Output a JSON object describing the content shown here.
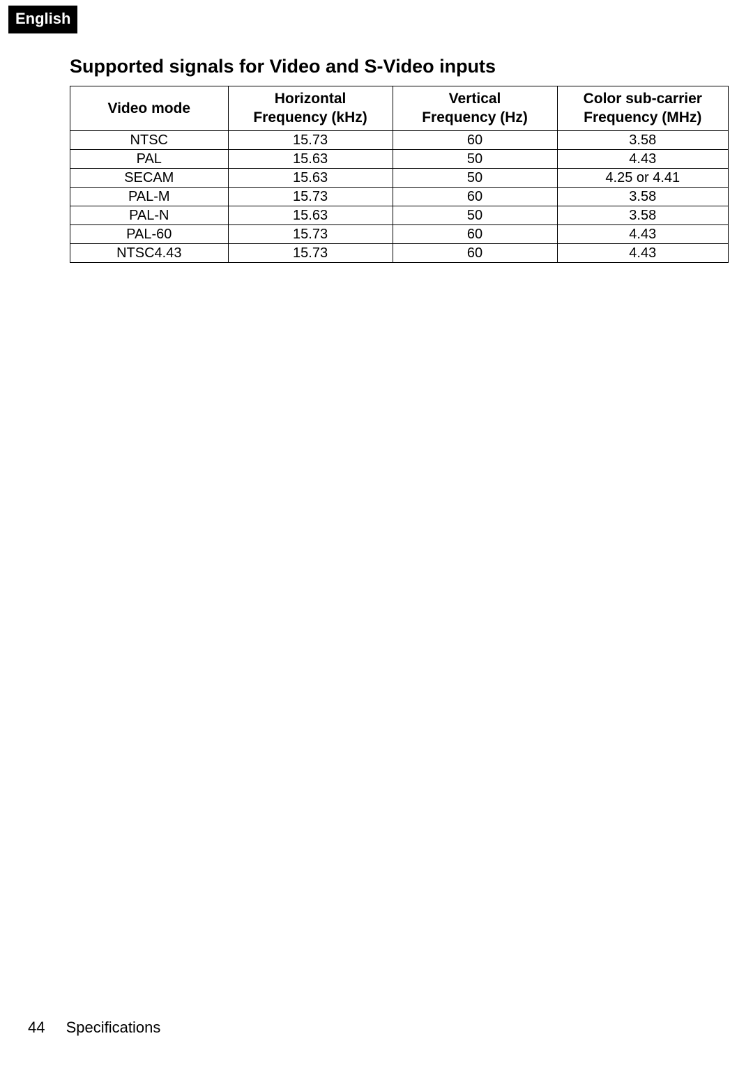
{
  "language_tab": "English",
  "section_title": "Supported signals for Video and S-Video inputs",
  "table": {
    "columns": [
      {
        "line1": "Video mode",
        "line2": ""
      },
      {
        "line1": "Horizontal",
        "line2": "Frequency (kHz)"
      },
      {
        "line1": "Vertical",
        "line2": "Frequency (Hz)"
      },
      {
        "line1": "Color sub-carrier",
        "line2": "Frequency (MHz)"
      }
    ],
    "rows": [
      [
        "NTSC",
        "15.73",
        "60",
        "3.58"
      ],
      [
        "PAL",
        "15.63",
        "50",
        "4.43"
      ],
      [
        "SECAM",
        "15.63",
        "50",
        "4.25 or 4.41"
      ],
      [
        "PAL-M",
        "15.73",
        "60",
        "3.58"
      ],
      [
        "PAL-N",
        "15.63",
        "50",
        "3.58"
      ],
      [
        "PAL-60",
        "15.73",
        "60",
        "4.43"
      ],
      [
        "NTSC4.43",
        "15.73",
        "60",
        "4.43"
      ]
    ]
  },
  "footer": {
    "page_number": "44",
    "section_name": "Specifications"
  }
}
